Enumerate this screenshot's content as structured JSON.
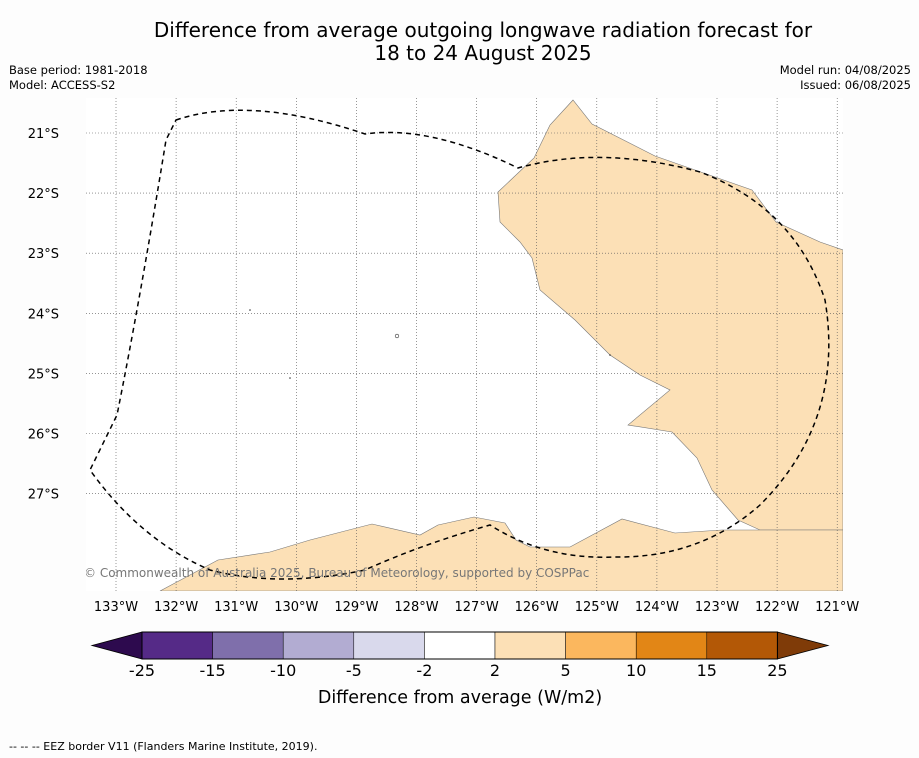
{
  "title": {
    "line1": "Difference from average outgoing longwave radiation forecast for",
    "line2": "18 to 24 August 2025"
  },
  "meta": {
    "base_period": "Base period: 1981-2018",
    "model": "Model: ACCESS-S2",
    "model_run": "Model run: 04/08/2025",
    "issued": "Issued: 06/08/2025"
  },
  "map": {
    "lat_labels": [
      "21°S",
      "22°S",
      "23°S",
      "24°S",
      "25°S",
      "26°S",
      "27°S"
    ],
    "lon_labels": [
      "133°W",
      "132°W",
      "131°W",
      "130°W",
      "129°W",
      "128°W",
      "127°W",
      "126°W",
      "125°W",
      "124°W",
      "123°W",
      "122°W",
      "121°W"
    ],
    "copyright": "© Commonwealth of Australia 2025, Bureau of Meteorology, supported by COSPPac",
    "anomaly_fill": "#fce0b6",
    "eez_line": "dashed"
  },
  "colorbar": {
    "label": "Difference from average (W/m2)",
    "ticks": [
      "-25",
      "-15",
      "-10",
      "-5",
      "-2",
      "2",
      "5",
      "10",
      "15",
      "25"
    ],
    "colors": [
      "#2d0a4e",
      "#552a87",
      "#7f6fab",
      "#b2acd2",
      "#d9d9ec",
      "#ffffff",
      "#fce0b6",
      "#fbb75e",
      "#e28616",
      "#b35806",
      "#7f3b08"
    ]
  },
  "footer": {
    "legend": "--  --  -- EEZ border V11 (Flanders Marine Institute, 2019)."
  }
}
